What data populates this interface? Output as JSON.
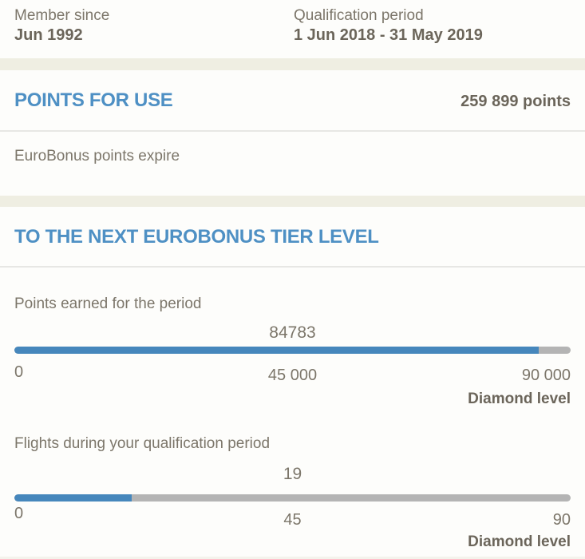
{
  "member": {
    "member_since_label": "Member since",
    "member_since_value": "Jun 1992",
    "qualification_period_label": "Qualification period",
    "qualification_period_value": "1 Jun 2018 - 31 May 2019"
  },
  "points_for_use": {
    "title": "POINTS FOR USE",
    "points_total": "259 899 points",
    "expire_text": "EuroBonus points expire"
  },
  "tier_progress": {
    "title": "TO THE NEXT EUROBONUS TIER LEVEL",
    "bars": [
      {
        "label": "Points earned for the period",
        "current_value": "84783",
        "percent": 94.2,
        "tick_start": "0",
        "tick_mid": "45 000",
        "tick_end": "90 000",
        "max_value": 90000,
        "target_label": "Diamond level"
      },
      {
        "label": "Flights during your qualification period",
        "current_value": "19",
        "percent": 21.1,
        "tick_start": "0",
        "tick_mid": "45",
        "tick_end": "90",
        "max_value": 90,
        "target_label": "Diamond level"
      }
    ]
  },
  "colors": {
    "accent_blue": "#4e90c4",
    "bar_fill_blue": "#4687bc",
    "bar_track_gray": "#b4b4b4",
    "band_beige": "#efeee2",
    "text_muted": "#7c766a",
    "text_strong": "#6b655a"
  }
}
